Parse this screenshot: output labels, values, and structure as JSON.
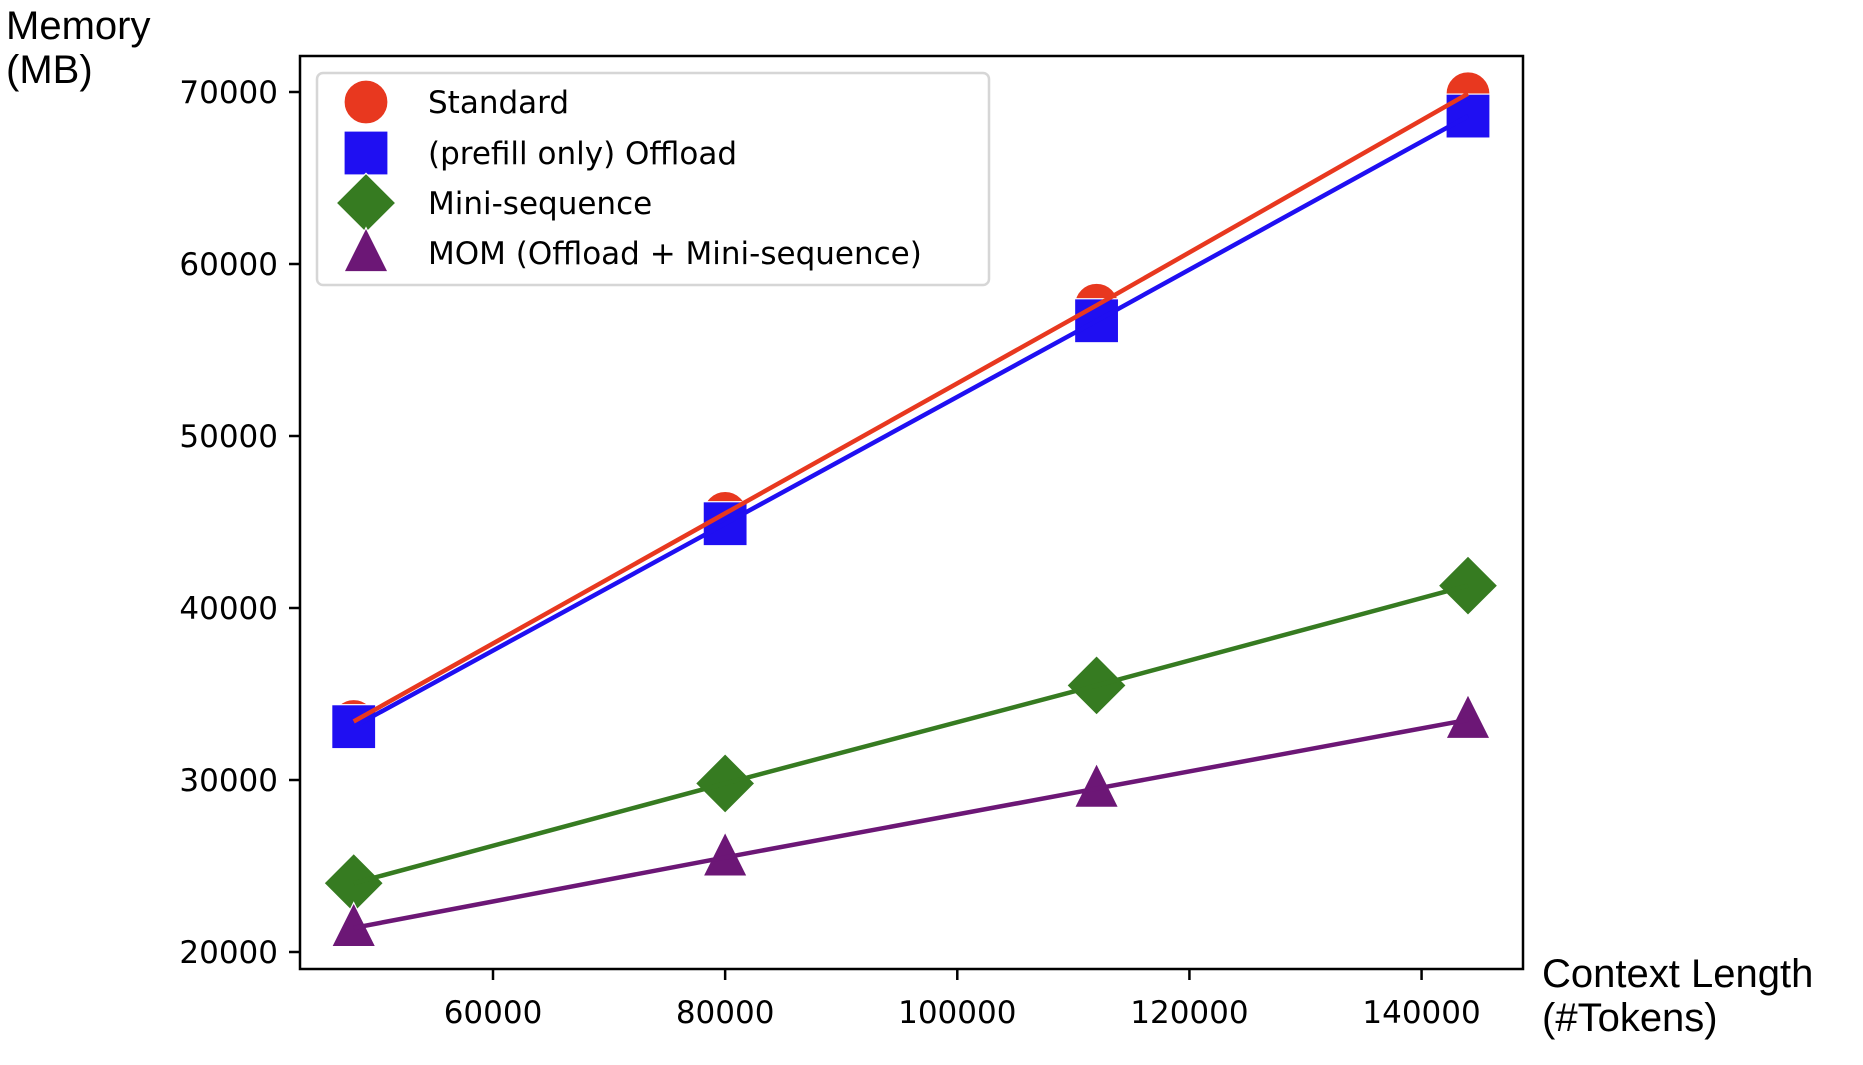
{
  "chart_data": {
    "type": "line",
    "title": "",
    "xlabel": "Context Length (#Tokens)",
    "ylabel": "Memory (MB)",
    "xlabel_lines": [
      "Context Length",
      "(#Tokens)"
    ],
    "ylabel_lines": [
      "Memory",
      "(MB)"
    ],
    "x": [
      48000,
      80000,
      112000,
      144000
    ],
    "xlim": [
      44000,
      148000
    ],
    "ylim": [
      18800,
      72200
    ],
    "xticks": [
      60000,
      80000,
      100000,
      120000,
      140000
    ],
    "yticks": [
      20000,
      30000,
      40000,
      50000,
      60000,
      70000
    ],
    "xtick_labels": [
      "60000",
      "80000",
      "100000",
      "120000",
      "140000"
    ],
    "ytick_labels": [
      "20000",
      "30000",
      "40000",
      "50000",
      "60000",
      "70000"
    ],
    "grid": false,
    "legend_position": "upper left",
    "series": [
      {
        "name": "Standard",
        "marker": "circle",
        "color": "#e8381f",
        "values": [
          33400,
          45500,
          57600,
          69900
        ]
      },
      {
        "name": "(prefill only) Offload",
        "marker": "square",
        "color": "#1f0ff2",
        "values": [
          33100,
          44900,
          56700,
          68600
        ]
      },
      {
        "name": "Mini-sequence",
        "marker": "diamond",
        "color": "#367b21",
        "values": [
          24000,
          29800,
          35500,
          41300
        ]
      },
      {
        "name": "MOM (Offload + Mini-sequence)",
        "marker": "triangle",
        "color": "#6c1776",
        "values": [
          21400,
          25500,
          29500,
          33500
        ]
      }
    ]
  }
}
